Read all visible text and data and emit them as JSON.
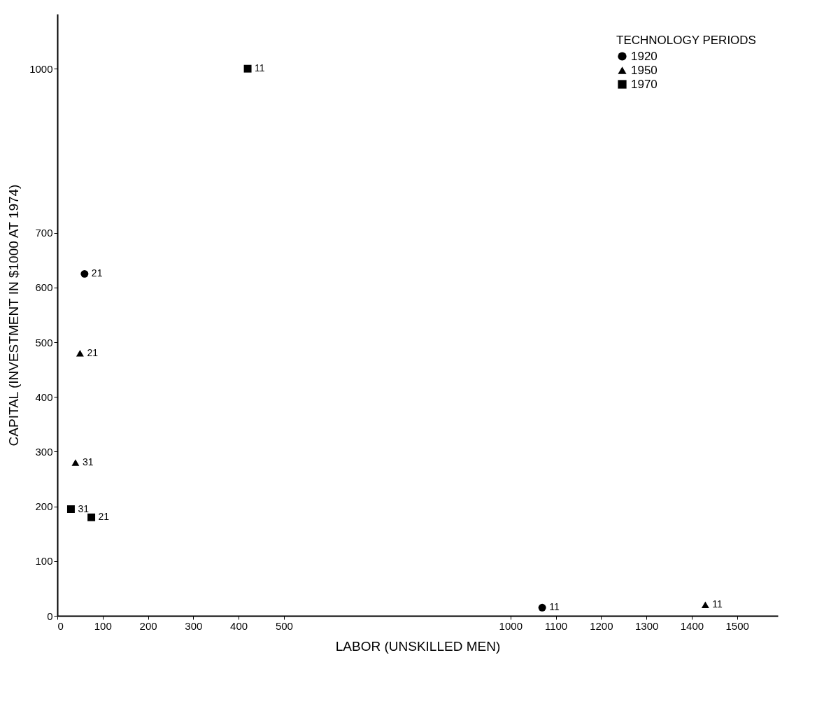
{
  "chart_data": {
    "type": "scatter",
    "xlabel": "LABOR (UNSKILLED MEN)",
    "ylabel": "CAPITAL (INVESTMENT IN $1000 AT 1974)",
    "xlim": [
      0,
      1590
    ],
    "xticks": [
      0,
      100,
      200,
      300,
      400,
      500,
      1000,
      1100,
      1200,
      1300,
      1400,
      1500
    ],
    "ylim": [
      0,
      1100
    ],
    "yticks": [
      0,
      100,
      200,
      300,
      400,
      500,
      600,
      700,
      1000
    ],
    "grid": false,
    "legend": "top right",
    "legend_title": "TECHNOLOGY PERIODS",
    "series": [
      {
        "name": "1920",
        "color": "#000000",
        "marker": "circle",
        "x": [
          60,
          1070
        ],
        "values": [
          625,
          15
        ]
      },
      {
        "name": "1950",
        "color": "#000000",
        "marker": "triangle",
        "x": [
          50,
          40,
          1430
        ],
        "values": [
          480,
          280,
          20
        ]
      },
      {
        "name": "1970",
        "color": "#000000",
        "marker": "square",
        "x": [
          420,
          30,
          75
        ],
        "values": [
          1000,
          195,
          180
        ]
      }
    ],
    "annotations": [
      {
        "text": "11",
        "x": 420,
        "y": 1000
      },
      {
        "text": "21",
        "x": 60,
        "y": 625
      },
      {
        "text": "21",
        "x": 50,
        "y": 480
      },
      {
        "text": "31",
        "x": 40,
        "y": 280
      },
      {
        "text": "31",
        "x": 30,
        "y": 195
      },
      {
        "text": "21",
        "x": 75,
        "y": 180
      },
      {
        "text": "11",
        "x": 1070,
        "y": 15
      },
      {
        "text": "11",
        "x": 1430,
        "y": 20
      }
    ]
  }
}
